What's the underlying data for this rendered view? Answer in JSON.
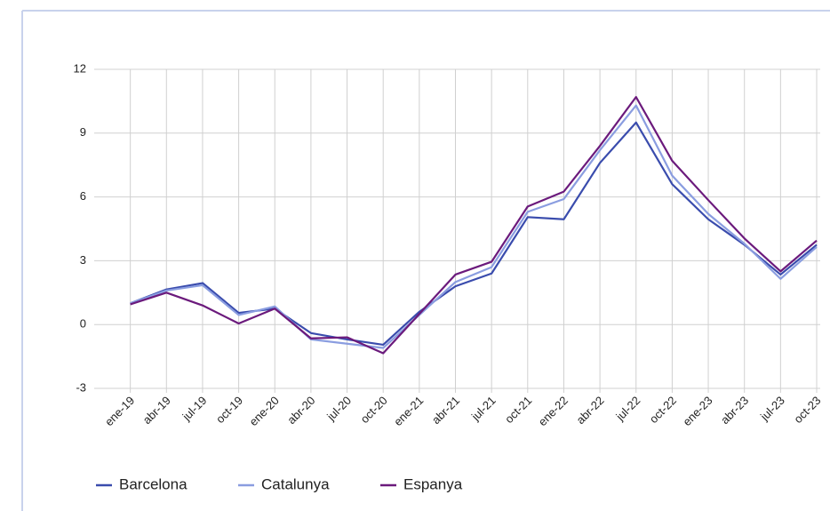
{
  "chart_data": {
    "type": "line",
    "categories": [
      "ene-19",
      "abr-19",
      "jul-19",
      "oct-19",
      "ene-20",
      "abr-20",
      "jul-20",
      "oct-20",
      "ene-21",
      "abr-21",
      "jul-21",
      "oct-21",
      "ene-22",
      "abr-22",
      "jul-22",
      "oct-22",
      "ene-23",
      "abr-23",
      "jul-23",
      "oct-23"
    ],
    "series": [
      {
        "name": "Barcelona",
        "color": "#3a4cad",
        "values": [
          1.0,
          1.65,
          1.95,
          0.55,
          0.75,
          -0.4,
          -0.7,
          -0.95,
          0.6,
          1.8,
          2.4,
          5.05,
          4.95,
          7.6,
          9.5,
          6.6,
          4.95,
          3.75,
          2.35,
          3.75
        ]
      },
      {
        "name": "Catalunya",
        "color": "#8a9de0",
        "values": [
          1.0,
          1.6,
          1.85,
          0.45,
          0.85,
          -0.7,
          -0.9,
          -1.1,
          0.45,
          2.0,
          2.7,
          5.3,
          5.9,
          8.2,
          10.3,
          7.0,
          5.2,
          3.8,
          2.15,
          3.65
        ]
      },
      {
        "name": "Espanya",
        "color": "#6b1a7c",
        "values": [
          0.95,
          1.5,
          0.9,
          0.05,
          0.75,
          -0.65,
          -0.6,
          -1.35,
          0.5,
          2.35,
          2.95,
          5.55,
          6.25,
          8.4,
          10.7,
          7.7,
          5.85,
          4.05,
          2.5,
          3.95
        ]
      }
    ],
    "ylim": [
      -3,
      12
    ],
    "yticks": [
      -3,
      0,
      3,
      6,
      9,
      12
    ],
    "grid": true,
    "legend": "bottom"
  }
}
